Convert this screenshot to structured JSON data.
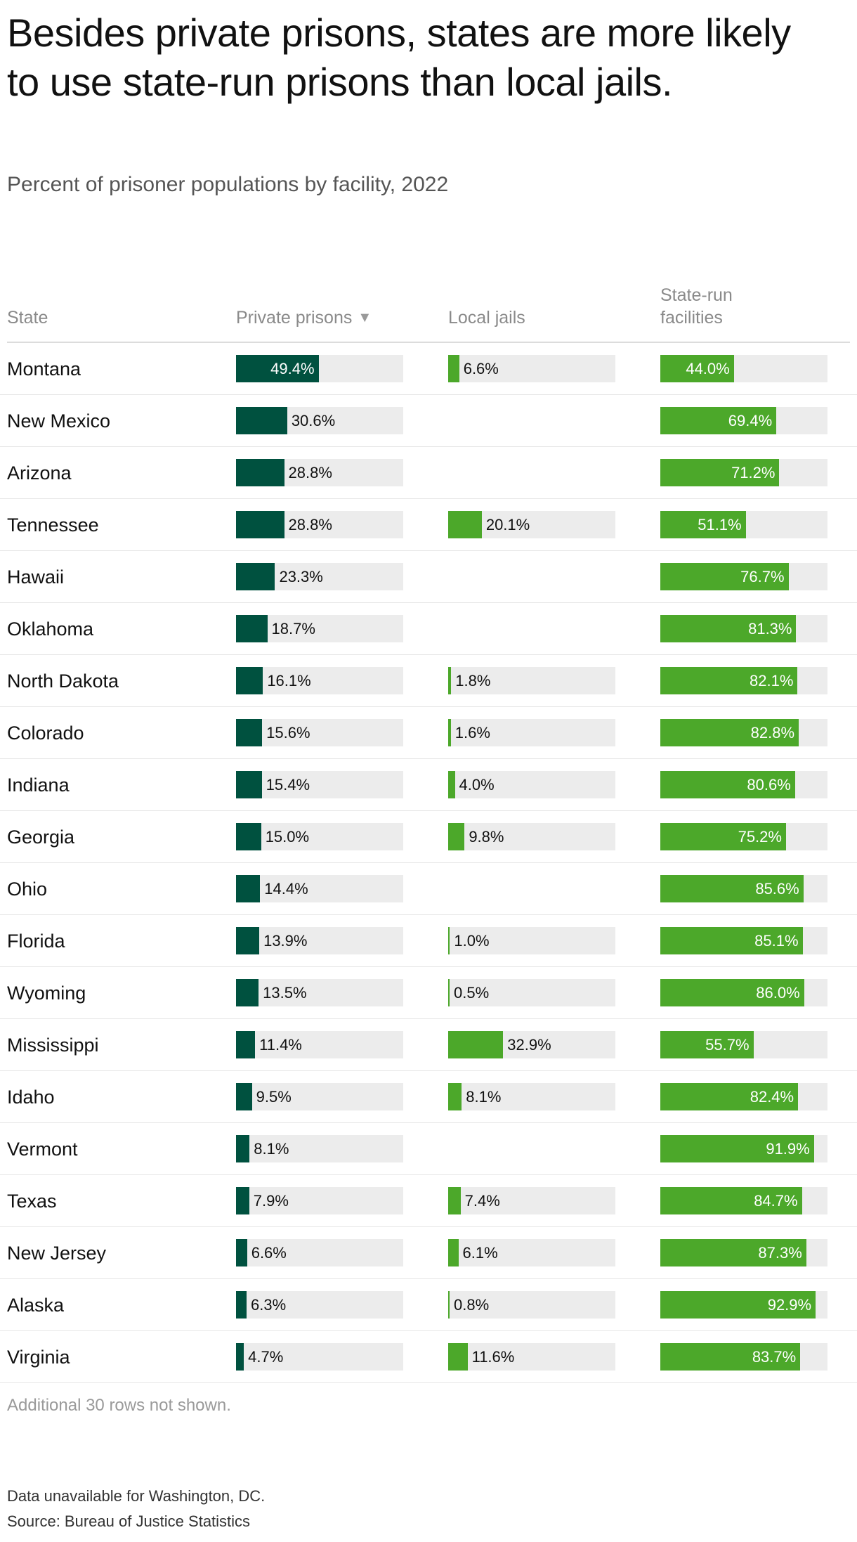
{
  "title": "Besides private prisons, states are more likely to use state-run prisons than local jails.",
  "subtitle": "Percent of prisoner populations by facility, 2022",
  "columns": {
    "state": "State",
    "private": "Private prisons",
    "private_sort": "▼",
    "local": "Local jails",
    "state_run": "State-run facilities"
  },
  "colors": {
    "private": "#00513f",
    "local": "#4ca82a",
    "state_run": "#4ca82a",
    "track": "#ececec"
  },
  "chart_data": {
    "type": "table",
    "scale_max": 100,
    "columns": [
      "Private prisons",
      "Local jails",
      "State-run facilities"
    ],
    "rows": [
      {
        "state": "Montana",
        "private": 49.4,
        "local": 6.6,
        "state_run": 44.0
      },
      {
        "state": "New Mexico",
        "private": 30.6,
        "local": null,
        "state_run": 69.4
      },
      {
        "state": "Arizona",
        "private": 28.8,
        "local": null,
        "state_run": 71.2
      },
      {
        "state": "Tennessee",
        "private": 28.8,
        "local": 20.1,
        "state_run": 51.1
      },
      {
        "state": "Hawaii",
        "private": 23.3,
        "local": null,
        "state_run": 76.7
      },
      {
        "state": "Oklahoma",
        "private": 18.7,
        "local": null,
        "state_run": 81.3
      },
      {
        "state": "North Dakota",
        "private": 16.1,
        "local": 1.8,
        "state_run": 82.1
      },
      {
        "state": "Colorado",
        "private": 15.6,
        "local": 1.6,
        "state_run": 82.8
      },
      {
        "state": "Indiana",
        "private": 15.4,
        "local": 4.0,
        "state_run": 80.6
      },
      {
        "state": "Georgia",
        "private": 15.0,
        "local": 9.8,
        "state_run": 75.2
      },
      {
        "state": "Ohio",
        "private": 14.4,
        "local": null,
        "state_run": 85.6
      },
      {
        "state": "Florida",
        "private": 13.9,
        "local": 1.0,
        "state_run": 85.1
      },
      {
        "state": "Wyoming",
        "private": 13.5,
        "local": 0.5,
        "state_run": 86.0
      },
      {
        "state": "Mississippi",
        "private": 11.4,
        "local": 32.9,
        "state_run": 55.7
      },
      {
        "state": "Idaho",
        "private": 9.5,
        "local": 8.1,
        "state_run": 82.4
      },
      {
        "state": "Vermont",
        "private": 8.1,
        "local": null,
        "state_run": 91.9
      },
      {
        "state": "Texas",
        "private": 7.9,
        "local": 7.4,
        "state_run": 84.7
      },
      {
        "state": "New Jersey",
        "private": 6.6,
        "local": 6.1,
        "state_run": 87.3
      },
      {
        "state": "Alaska",
        "private": 6.3,
        "local": 0.8,
        "state_run": 92.9
      },
      {
        "state": "Virginia",
        "private": 4.7,
        "local": 11.6,
        "state_run": 83.7
      }
    ]
  },
  "footer": {
    "more_rows": "Additional 30 rows not shown.",
    "note": "Data unavailable for Washington, DC.",
    "source": "Source: Bureau of Justice Statistics"
  }
}
